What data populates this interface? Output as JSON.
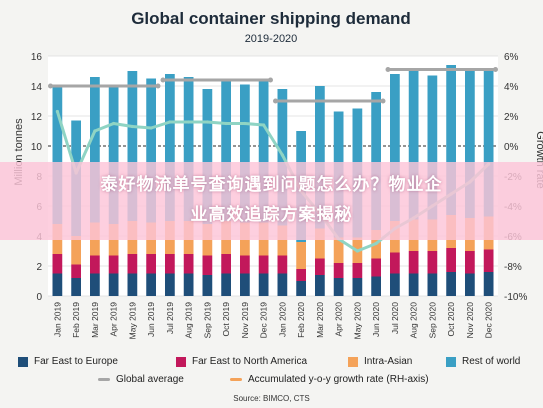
{
  "banner": {
    "line1": "泰好物流单号查询遇到问题怎么办？物业企",
    "line2": "业高效追踪方案揭秘"
  },
  "colors": {
    "far_east_to_europe": "#1f4e79",
    "far_east_to_north_america": "#c2185b",
    "intra_asian": "#f4a259",
    "rest_of_world": "#3a9fc4",
    "global_average": "#a6a6a6",
    "growth_rate": "#8fd4c4"
  },
  "source": "Source: BIMCO, CTS",
  "chart_data": {
    "type": "bar",
    "title": "Global container shipping demand",
    "subtitle": "2019-2020",
    "ylabel": "Million tonnes",
    "y2label": "Growth rate",
    "ylim": [
      0,
      16
    ],
    "y2lim": [
      -10,
      6
    ],
    "yticks": [
      "0",
      "2",
      "4",
      "6",
      "8",
      "10",
      "12",
      "14",
      "16"
    ],
    "y2ticks": [
      "-10%",
      "-8%",
      "-6%",
      "-4%",
      "-2%",
      "0%",
      "2%",
      "4%",
      "6%"
    ],
    "categories": [
      "Jan 2019",
      "Feb 2019",
      "Mar 2019",
      "Apr 2019",
      "May 2019",
      "Jun 2019",
      "Jul 2019",
      "Aug 2019",
      "Sep 2019",
      "Oct 2019",
      "Nov 2019",
      "Dec 2019",
      "Jan 2020",
      "Feb 2020",
      "Mar 2020",
      "Apr 2020",
      "May 2020",
      "Jun 2020",
      "Jul 2020",
      "Aug 2020",
      "Sep 2020",
      "Oct 2020",
      "Nov 2020",
      "Dec 2020"
    ],
    "series": [
      {
        "name": "Far East to Europe",
        "values": [
          1.5,
          1.2,
          1.5,
          1.5,
          1.5,
          1.5,
          1.5,
          1.5,
          1.4,
          1.5,
          1.5,
          1.5,
          1.5,
          1.0,
          1.4,
          1.2,
          1.2,
          1.3,
          1.5,
          1.5,
          1.5,
          1.6,
          1.5,
          1.6
        ]
      },
      {
        "name": "Far East to North America",
        "values": [
          1.3,
          0.9,
          1.2,
          1.2,
          1.3,
          1.3,
          1.3,
          1.3,
          1.3,
          1.3,
          1.2,
          1.2,
          1.2,
          0.8,
          1.1,
          1.0,
          1.0,
          1.2,
          1.4,
          1.5,
          1.5,
          1.6,
          1.5,
          1.5
        ]
      },
      {
        "name": "Intra-Asian",
        "values": [
          2.0,
          1.9,
          2.2,
          2.1,
          2.2,
          2.1,
          2.2,
          2.2,
          2.1,
          2.2,
          2.2,
          2.2,
          2.0,
          1.8,
          2.0,
          1.7,
          1.7,
          1.9,
          2.1,
          2.1,
          2.1,
          2.2,
          2.2,
          2.2
        ]
      },
      {
        "name": "Rest of world",
        "values": [
          9.1,
          7.7,
          9.7,
          9.3,
          10.0,
          9.6,
          9.8,
          9.6,
          9.0,
          9.5,
          9.2,
          9.6,
          9.1,
          7.4,
          9.5,
          8.4,
          8.6,
          9.2,
          9.8,
          10.0,
          9.6,
          10.0,
          9.9,
          9.7
        ]
      }
    ],
    "global_average": [
      {
        "from": 0,
        "to": 5,
        "value": 14.0
      },
      {
        "from": 6,
        "to": 11,
        "value": 14.4
      },
      {
        "from": 12,
        "to": 17,
        "value": 13.0
      },
      {
        "from": 18,
        "to": 23,
        "value": 15.1
      }
    ],
    "growth_rate": [
      2.3,
      -1.8,
      1.0,
      1.5,
      1.3,
      1.2,
      1.6,
      1.6,
      1.6,
      1.5,
      1.5,
      1.4,
      -0.6,
      -3.0,
      -4.5,
      -6.2,
      -7.0,
      -6.5,
      -5.5,
      -4.8,
      -4.0,
      -3.2,
      -2.4,
      -1.2
    ],
    "legend": [
      "Far East to Europe",
      "Far East to North America",
      "Intra-Asian",
      "Rest of world",
      "Global average",
      "Accumulated y-o-y growth rate (RH-axis)"
    ],
    "legend_position": "bottom"
  }
}
